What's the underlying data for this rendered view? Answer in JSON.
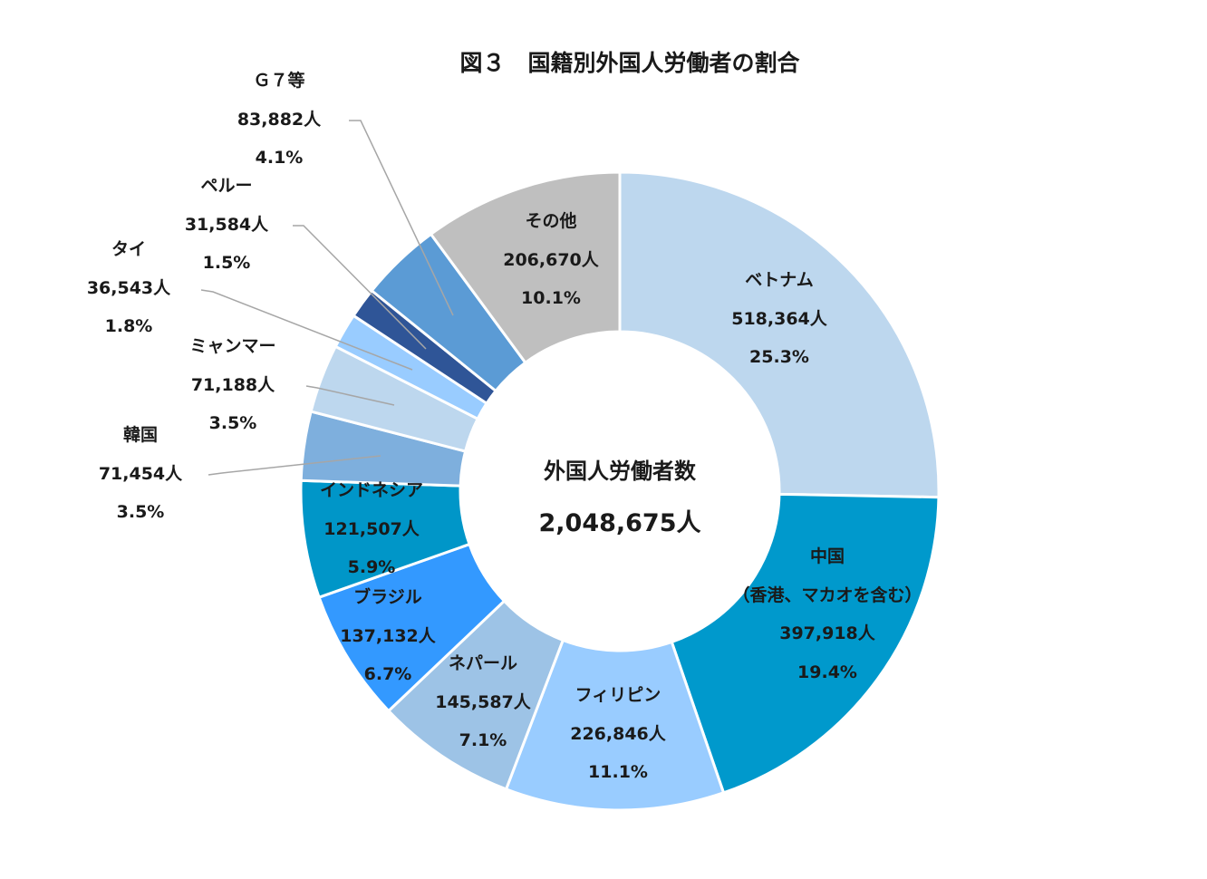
{
  "chart_data": {
    "type": "pie",
    "style": "donut",
    "title": "図３　国籍別外国人労働者の割合",
    "center_label": "外国人労働者数",
    "center_value": "2,048,675人",
    "slices": [
      {
        "name": "ベトナム",
        "count_label": "518,364人",
        "pct_label": "25.3%",
        "value": 518364,
        "percent": 25.3,
        "color": "#BDD7EE"
      },
      {
        "name": "中国",
        "sub": "（香港、マカオを含む）",
        "count_label": "397,918人",
        "pct_label": "19.4%",
        "value": 397918,
        "percent": 19.4,
        "color": "#0099CC"
      },
      {
        "name": "フィリピン",
        "count_label": "226,846人",
        "pct_label": "11.1%",
        "value": 226846,
        "percent": 11.1,
        "color": "#99CCFF"
      },
      {
        "name": "ネパール",
        "count_label": "145,587人",
        "pct_label": "7.1%",
        "value": 145587,
        "percent": 7.1,
        "color": "#9DC3E6"
      },
      {
        "name": "ブラジル",
        "count_label": "137,132人",
        "pct_label": "6.7%",
        "value": 137132,
        "percent": 6.7,
        "color": "#3399FF"
      },
      {
        "name": "インドネシア",
        "count_label": "121,507人",
        "pct_label": "5.9%",
        "value": 121507,
        "percent": 5.9,
        "color": "#0096C8"
      },
      {
        "name": "韓国",
        "count_label": "71,454人",
        "pct_label": "3.5%",
        "value": 71454,
        "percent": 3.5,
        "color": "#7EAFDD"
      },
      {
        "name": "ミャンマー",
        "count_label": "71,188人",
        "pct_label": "3.5%",
        "value": 71188,
        "percent": 3.5,
        "color": "#BDD7EE"
      },
      {
        "name": "タイ",
        "count_label": "36,543人",
        "pct_label": "1.8%",
        "value": 36543,
        "percent": 1.8,
        "color": "#99CCFF"
      },
      {
        "name": "ペルー",
        "count_label": "31,584人",
        "pct_label": "1.5%",
        "value": 31584,
        "percent": 1.5,
        "color": "#2F5597"
      },
      {
        "name": "Ｇ７等",
        "count_label": "83,882人",
        "pct_label": "4.1%",
        "value": 83882,
        "percent": 4.1,
        "color": "#5B9BD5"
      },
      {
        "name": "その他",
        "count_label": "206,670人",
        "pct_label": "10.1%",
        "value": 206670,
        "percent": 10.1,
        "color": "#BFBFBF"
      }
    ],
    "start_angle": "12 o'clock",
    "direction": "clockwise"
  }
}
